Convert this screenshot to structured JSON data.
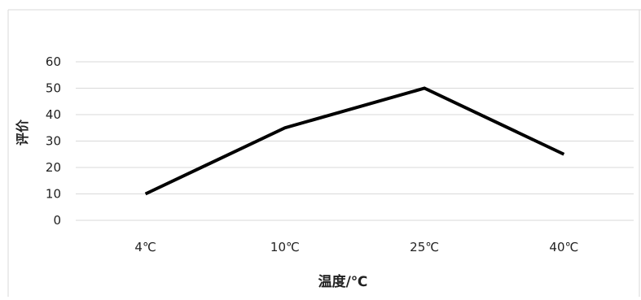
{
  "chart_data": {
    "type": "line",
    "title": "",
    "xlabel": "温度/℃",
    "ylabel": "评价",
    "categories": [
      "4℃",
      "10℃",
      "25℃",
      "40℃"
    ],
    "series": [
      {
        "values": [
          10,
          35,
          50,
          25
        ]
      }
    ],
    "ylim": [
      0,
      60
    ],
    "yticks": [
      0,
      10,
      20,
      30,
      40,
      50,
      60
    ],
    "grid": true,
    "legend": "none",
    "colors": {
      "line": "#000000",
      "grid": "#d9d9d9",
      "frame": "#d9d9d9"
    }
  }
}
